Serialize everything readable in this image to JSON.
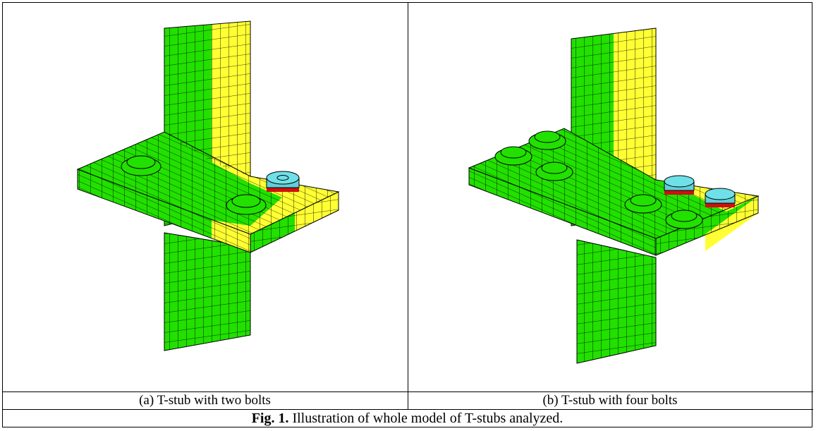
{
  "panels": [
    {
      "caption": "(a) T-stub with two bolts"
    },
    {
      "caption": "(b) T-stub with four bolts"
    }
  ],
  "figure": {
    "label": "Fig. 1.",
    "caption": "Illustration of whole model of T-stubs analyzed."
  }
}
